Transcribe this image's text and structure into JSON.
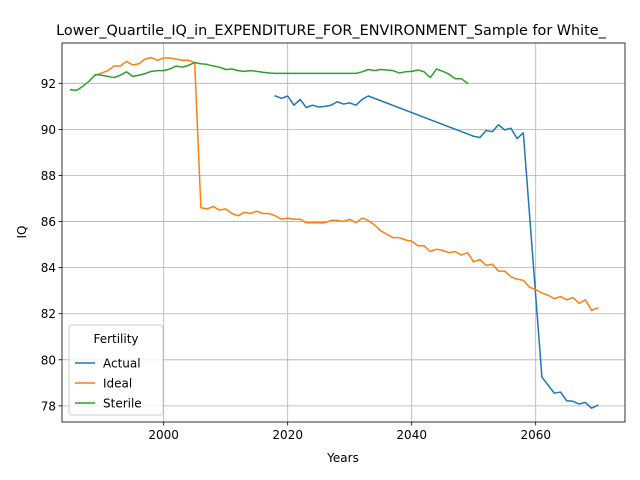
{
  "chart_data": {
    "type": "line",
    "title": "Lower_Quartile_IQ_in_EXPENDITURE_FOR_ENVIRONMENT_Sample for White_",
    "xlabel": "Years",
    "ylabel": "IQ",
    "xlim": [
      1983.6,
      2074.4
    ],
    "ylim": [
      77.3,
      93.75
    ],
    "xticks": [
      2000,
      2020,
      2040,
      2060
    ],
    "yticks": [
      78,
      80,
      82,
      84,
      86,
      88,
      90,
      92
    ],
    "grid": true,
    "legend": {
      "title": "Fertility",
      "position": "lower-left"
    },
    "series": [
      {
        "name": "Actual",
        "color": "#1f77b4",
        "points": [
          [
            2018,
            91.45
          ],
          [
            2019,
            91.35
          ],
          [
            2020,
            91.45
          ],
          [
            2021,
            91.05
          ],
          [
            2022,
            91.3
          ],
          [
            2023,
            90.95
          ],
          [
            2024,
            91.05
          ],
          [
            2025,
            90.97
          ],
          [
            2026,
            91.0
          ],
          [
            2027,
            91.05
          ],
          [
            2028,
            91.2
          ],
          [
            2029,
            91.1
          ],
          [
            2030,
            91.15
          ],
          [
            2031,
            91.05
          ],
          [
            2032,
            91.3
          ],
          [
            2033,
            91.45
          ],
          [
            2050,
            89.7
          ],
          [
            2051,
            89.65
          ],
          [
            2052,
            89.95
          ],
          [
            2053,
            89.9
          ],
          [
            2054,
            90.2
          ],
          [
            2055,
            89.98
          ],
          [
            2056,
            90.05
          ],
          [
            2057,
            89.6
          ],
          [
            2058,
            89.85
          ],
          [
            2061,
            79.25
          ],
          [
            2062,
            78.9
          ],
          [
            2063,
            78.55
          ],
          [
            2064,
            78.6
          ],
          [
            2065,
            78.22
          ],
          [
            2066,
            78.2
          ],
          [
            2067,
            78.08
          ],
          [
            2068,
            78.15
          ],
          [
            2069,
            77.9
          ],
          [
            2070,
            78.02
          ]
        ]
      },
      {
        "name": "Ideal",
        "color": "#ff7f0e",
        "points": [
          [
            1989,
            92.35
          ],
          [
            1990,
            92.45
          ],
          [
            1991,
            92.55
          ],
          [
            1992,
            92.75
          ],
          [
            1993,
            92.75
          ],
          [
            1994,
            92.95
          ],
          [
            1995,
            92.8
          ],
          [
            1996,
            92.85
          ],
          [
            1997,
            93.05
          ],
          [
            1998,
            93.12
          ],
          [
            1999,
            93.0
          ],
          [
            2000,
            93.1
          ],
          [
            2001,
            93.1
          ],
          [
            2002,
            93.05
          ],
          [
            2003,
            93.0
          ],
          [
            2004,
            93.0
          ],
          [
            2005,
            92.9
          ],
          [
            2006,
            86.6
          ],
          [
            2007,
            86.55
          ],
          [
            2008,
            86.65
          ],
          [
            2009,
            86.5
          ],
          [
            2010,
            86.55
          ],
          [
            2011,
            86.35
          ],
          [
            2012,
            86.25
          ],
          [
            2013,
            86.4
          ],
          [
            2014,
            86.35
          ],
          [
            2015,
            86.45
          ],
          [
            2016,
            86.35
          ],
          [
            2017,
            86.35
          ],
          [
            2018,
            86.25
          ],
          [
            2019,
            86.1
          ],
          [
            2020,
            86.15
          ],
          [
            2021,
            86.1
          ],
          [
            2022,
            86.1
          ],
          [
            2023,
            85.95
          ],
          [
            2024,
            85.95
          ],
          [
            2025,
            85.95
          ],
          [
            2026,
            85.95
          ],
          [
            2027,
            86.05
          ],
          [
            2028,
            86.05
          ],
          [
            2029,
            86.0
          ],
          [
            2030,
            86.1
          ],
          [
            2031,
            85.95
          ],
          [
            2032,
            86.15
          ],
          [
            2033,
            86.05
          ],
          [
            2034,
            85.85
          ],
          [
            2035,
            85.6
          ],
          [
            2036,
            85.45
          ],
          [
            2037,
            85.3
          ],
          [
            2038,
            85.3
          ],
          [
            2039,
            85.2
          ],
          [
            2040,
            85.15
          ],
          [
            2041,
            84.95
          ],
          [
            2042,
            84.95
          ],
          [
            2043,
            84.7
          ],
          [
            2044,
            84.8
          ],
          [
            2045,
            84.75
          ],
          [
            2046,
            84.65
          ],
          [
            2047,
            84.7
          ],
          [
            2048,
            84.55
          ],
          [
            2049,
            84.65
          ],
          [
            2050,
            84.25
          ],
          [
            2051,
            84.35
          ],
          [
            2052,
            84.1
          ],
          [
            2053,
            84.15
          ],
          [
            2054,
            83.85
          ],
          [
            2055,
            83.85
          ],
          [
            2056,
            83.6
          ],
          [
            2057,
            83.5
          ],
          [
            2058,
            83.45
          ],
          [
            2059,
            83.15
          ],
          [
            2060,
            83.05
          ],
          [
            2061,
            82.9
          ],
          [
            2062,
            82.8
          ],
          [
            2063,
            82.65
          ],
          [
            2064,
            82.75
          ],
          [
            2065,
            82.6
          ],
          [
            2066,
            82.7
          ],
          [
            2067,
            82.45
          ],
          [
            2068,
            82.6
          ],
          [
            2069,
            82.15
          ],
          [
            2070,
            82.25
          ]
        ]
      },
      {
        "name": "Sterile",
        "color": "#2ca02c",
        "points": [
          [
            1985,
            91.72
          ],
          [
            1986,
            91.7
          ],
          [
            1987,
            91.88
          ],
          [
            1988,
            92.1
          ],
          [
            1989,
            92.38
          ],
          [
            1990,
            92.35
          ],
          [
            1991,
            92.3
          ],
          [
            1992,
            92.25
          ],
          [
            1993,
            92.35
          ],
          [
            1994,
            92.5
          ],
          [
            1995,
            92.3
          ],
          [
            1996,
            92.35
          ],
          [
            1997,
            92.42
          ],
          [
            1998,
            92.52
          ],
          [
            1999,
            92.55
          ],
          [
            2000,
            92.55
          ],
          [
            2001,
            92.62
          ],
          [
            2002,
            92.75
          ],
          [
            2003,
            92.7
          ],
          [
            2004,
            92.78
          ],
          [
            2005,
            92.9
          ],
          [
            2006,
            92.85
          ],
          [
            2007,
            92.82
          ],
          [
            2008,
            92.75
          ],
          [
            2009,
            92.7
          ],
          [
            2010,
            92.6
          ],
          [
            2011,
            92.62
          ],
          [
            2012,
            92.55
          ],
          [
            2013,
            92.52
          ],
          [
            2014,
            92.55
          ],
          [
            2015,
            92.52
          ],
          [
            2016,
            92.48
          ],
          [
            2017,
            92.45
          ],
          [
            2018,
            92.43
          ],
          [
            2019,
            92.43
          ],
          [
            2020,
            92.43
          ],
          [
            2021,
            92.43
          ],
          [
            2022,
            92.43
          ],
          [
            2023,
            92.43
          ],
          [
            2024,
            92.43
          ],
          [
            2025,
            92.43
          ],
          [
            2026,
            92.43
          ],
          [
            2027,
            92.43
          ],
          [
            2028,
            92.43
          ],
          [
            2029,
            92.43
          ],
          [
            2030,
            92.43
          ],
          [
            2031,
            92.43
          ],
          [
            2032,
            92.5
          ],
          [
            2033,
            92.6
          ],
          [
            2034,
            92.55
          ],
          [
            2035,
            92.6
          ],
          [
            2036,
            92.58
          ],
          [
            2037,
            92.55
          ],
          [
            2038,
            92.45
          ],
          [
            2039,
            92.5
          ],
          [
            2040,
            92.52
          ],
          [
            2041,
            92.58
          ],
          [
            2042,
            92.5
          ],
          [
            2043,
            92.25
          ],
          [
            2044,
            92.62
          ],
          [
            2045,
            92.52
          ],
          [
            2046,
            92.4
          ],
          [
            2047,
            92.2
          ],
          [
            2048,
            92.2
          ],
          [
            2049,
            92.0
          ]
        ]
      }
    ]
  }
}
